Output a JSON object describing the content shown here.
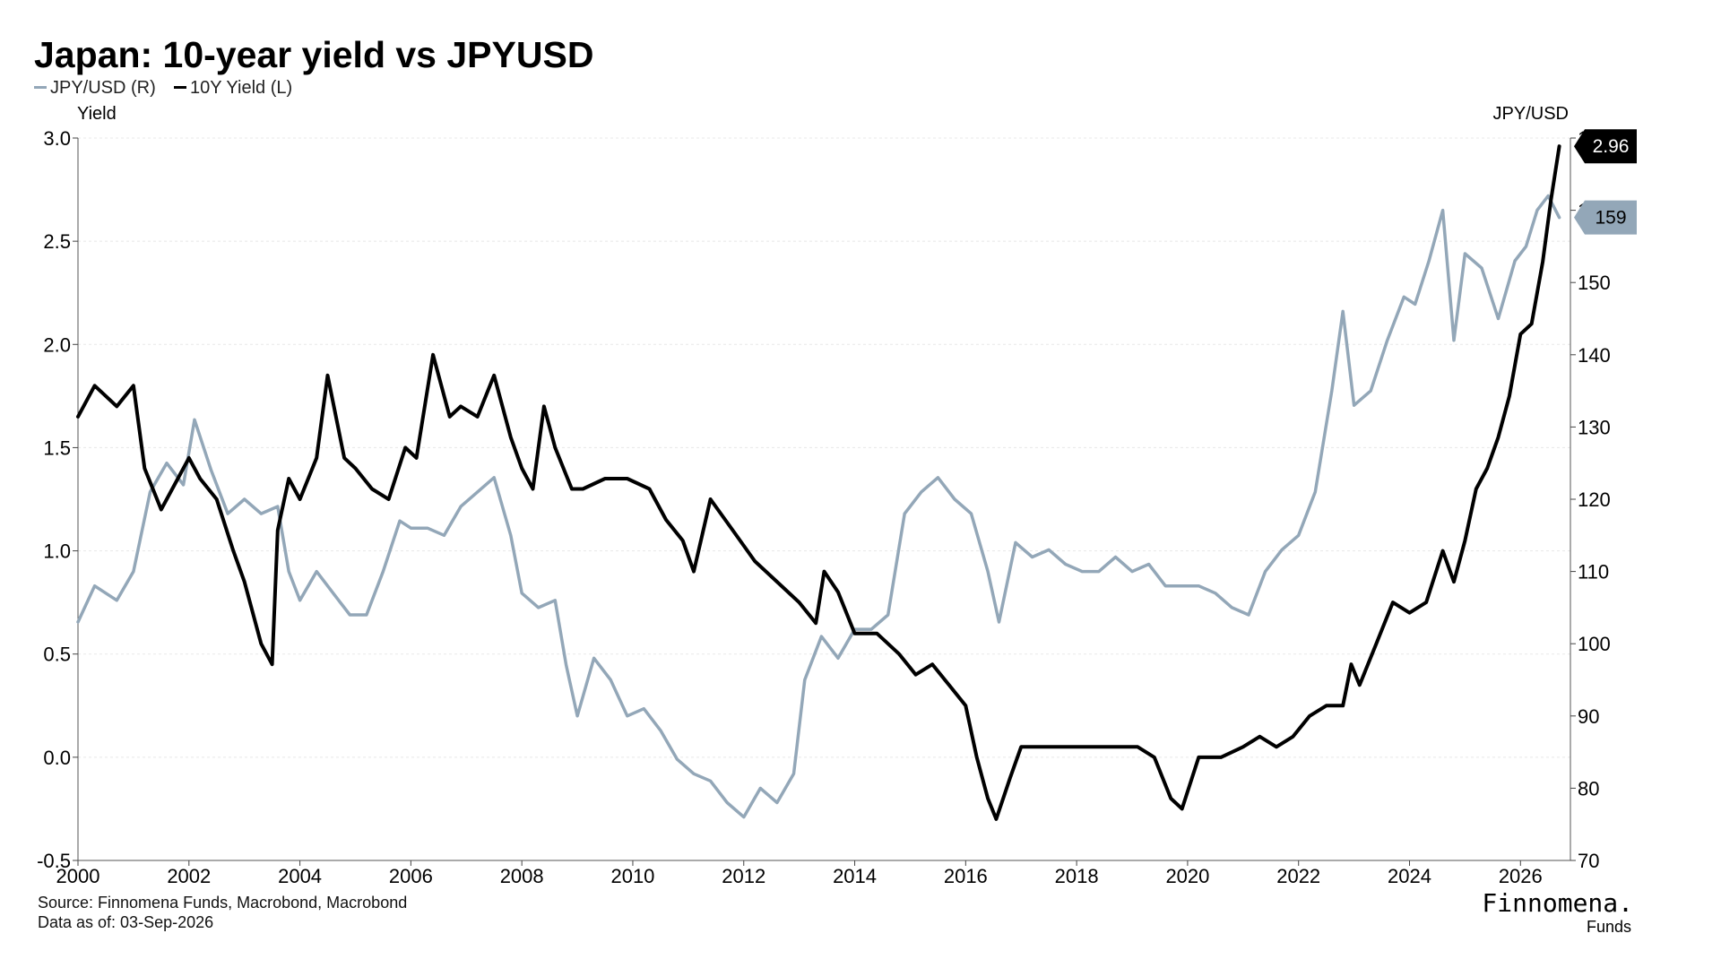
{
  "title": "Japan: 10-year yield vs JPYUSD",
  "legend": [
    {
      "label": "JPY/USD (R)",
      "color": "#93a7b8"
    },
    {
      "label": "10Y Yield (L)",
      "color": "#000000"
    }
  ],
  "footer": {
    "source": "Source: Finnomena Funds, Macrobond, Macrobond",
    "asof": "Data as of: 03-Sep-2026",
    "brand": "Finnomena.",
    "brand_sub": "Funds"
  },
  "chart_data": {
    "type": "line",
    "title": "Japan: 10-year yield vs JPYUSD",
    "y_left_label": "Yield",
    "y_right_label": "JPY/USD",
    "xlim": [
      2000,
      2026.9
    ],
    "x_ticks": [
      "2000",
      "2002",
      "2004",
      "2006",
      "2008",
      "2010",
      "2012",
      "2014",
      "2016",
      "2018",
      "2020",
      "2022",
      "2024",
      "2026"
    ],
    "y_left_lim": [
      -0.5,
      3.0
    ],
    "y_left_ticks": [
      "-0.5",
      "0.0",
      "0.5",
      "1.0",
      "1.5",
      "2.0",
      "2.5",
      "3.0"
    ],
    "y_right_lim": [
      70,
      170
    ],
    "y_right_ticks": [
      "70",
      "80",
      "90",
      "100",
      "110",
      "120",
      "130",
      "140",
      "150",
      "160",
      "170"
    ],
    "grid": true,
    "legend_position": "top-left",
    "end_labels": {
      "yield": "2.96",
      "jpyusd": "159"
    },
    "series": [
      {
        "name": "10Y Yield (L)",
        "axis": "left",
        "color": "#000000",
        "x": [
          2000.0,
          2000.3,
          2000.7,
          2001.0,
          2001.2,
          2001.5,
          2001.8,
          2002.0,
          2002.2,
          2002.5,
          2002.8,
          2003.0,
          2003.3,
          2003.5,
          2003.6,
          2003.8,
          2004.0,
          2004.3,
          2004.5,
          2004.8,
          2005.0,
          2005.3,
          2005.6,
          2005.9,
          2006.1,
          2006.4,
          2006.7,
          2006.9,
          2007.2,
          2007.5,
          2007.8,
          2008.0,
          2008.2,
          2008.4,
          2008.6,
          2008.9,
          2009.1,
          2009.5,
          2009.9,
          2010.3,
          2010.6,
          2010.9,
          2011.1,
          2011.4,
          2011.8,
          2012.2,
          2012.6,
          2013.0,
          2013.3,
          2013.45,
          2013.7,
          2014.0,
          2014.4,
          2014.8,
          2015.1,
          2015.4,
          2015.7,
          2016.0,
          2016.2,
          2016.4,
          2016.55,
          2016.8,
          2017.0,
          2017.3,
          2017.7,
          2018.0,
          2018.4,
          2018.8,
          2019.1,
          2019.4,
          2019.7,
          2019.9,
          2020.2,
          2020.6,
          2021.0,
          2021.3,
          2021.6,
          2021.9,
          2022.2,
          2022.5,
          2022.8,
          2022.95,
          2023.1,
          2023.4,
          2023.7,
          2024.0,
          2024.3,
          2024.6,
          2024.8,
          2025.0,
          2025.2,
          2025.4,
          2025.6,
          2025.8,
          2026.0,
          2026.2,
          2026.4,
          2026.55,
          2026.7
        ],
        "values": [
          1.65,
          1.8,
          1.7,
          1.8,
          1.4,
          1.2,
          1.35,
          1.45,
          1.35,
          1.25,
          1.0,
          0.85,
          0.55,
          0.45,
          1.1,
          1.35,
          1.25,
          1.45,
          1.85,
          1.45,
          1.4,
          1.3,
          1.25,
          1.5,
          1.45,
          1.95,
          1.65,
          1.7,
          1.65,
          1.85,
          1.55,
          1.4,
          1.3,
          1.7,
          1.5,
          1.3,
          1.3,
          1.35,
          1.35,
          1.3,
          1.15,
          1.05,
          0.9,
          1.25,
          1.1,
          0.95,
          0.85,
          0.75,
          0.65,
          0.9,
          0.8,
          0.6,
          0.6,
          0.5,
          0.4,
          0.45,
          0.35,
          0.25,
          0.0,
          -0.2,
          -0.3,
          -0.1,
          0.05,
          0.05,
          0.05,
          0.05,
          0.05,
          0.05,
          0.05,
          0.0,
          -0.2,
          -0.25,
          0.0,
          0.0,
          0.05,
          0.1,
          0.05,
          0.1,
          0.2,
          0.25,
          0.25,
          0.45,
          0.35,
          0.55,
          0.75,
          0.7,
          0.75,
          1.0,
          0.85,
          1.05,
          1.3,
          1.4,
          1.55,
          1.75,
          2.05,
          2.1,
          2.4,
          2.7,
          2.96
        ]
      },
      {
        "name": "JPY/USD (R)",
        "axis": "right",
        "color": "#93a7b8",
        "x": [
          2000.0,
          2000.3,
          2000.7,
          2001.0,
          2001.3,
          2001.6,
          2001.9,
          2002.1,
          2002.4,
          2002.7,
          2003.0,
          2003.3,
          2003.6,
          2003.8,
          2004.0,
          2004.3,
          2004.6,
          2004.9,
          2005.2,
          2005.5,
          2005.8,
          2006.0,
          2006.3,
          2006.6,
          2006.9,
          2007.2,
          2007.5,
          2007.8,
          2008.0,
          2008.3,
          2008.6,
          2008.8,
          2009.0,
          2009.3,
          2009.6,
          2009.9,
          2010.2,
          2010.5,
          2010.8,
          2011.1,
          2011.4,
          2011.7,
          2012.0,
          2012.3,
          2012.6,
          2012.9,
          2013.1,
          2013.4,
          2013.7,
          2014.0,
          2014.3,
          2014.6,
          2014.9,
          2015.2,
          2015.5,
          2015.8,
          2016.1,
          2016.4,
          2016.6,
          2016.9,
          2017.2,
          2017.5,
          2017.8,
          2018.1,
          2018.4,
          2018.7,
          2019.0,
          2019.3,
          2019.6,
          2019.9,
          2020.2,
          2020.5,
          2020.8,
          2021.1,
          2021.4,
          2021.7,
          2022.0,
          2022.3,
          2022.6,
          2022.8,
          2023.0,
          2023.3,
          2023.6,
          2023.9,
          2024.1,
          2024.35,
          2024.6,
          2024.8,
          2025.0,
          2025.3,
          2025.6,
          2025.9,
          2026.1,
          2026.3,
          2026.5,
          2026.7
        ],
        "values": [
          103,
          108,
          106,
          110,
          121,
          125,
          122,
          131,
          124,
          118,
          120,
          118,
          119,
          110,
          106,
          110,
          107,
          104,
          104,
          110,
          117,
          116,
          116,
          115,
          119,
          121,
          123,
          115,
          107,
          105,
          106,
          97,
          90,
          98,
          95,
          90,
          91,
          88,
          84,
          82,
          81,
          78,
          76,
          80,
          78,
          82,
          95,
          101,
          98,
          102,
          102,
          104,
          118,
          121,
          123,
          120,
          118,
          110,
          103,
          114,
          112,
          113,
          111,
          110,
          110,
          112,
          110,
          111,
          108,
          108,
          108,
          107,
          105,
          104,
          110,
          113,
          115,
          121,
          135,
          146,
          133,
          135,
          142,
          148,
          147,
          153,
          160,
          142,
          154,
          152,
          145,
          153,
          155,
          160,
          162,
          159
        ]
      }
    ]
  }
}
